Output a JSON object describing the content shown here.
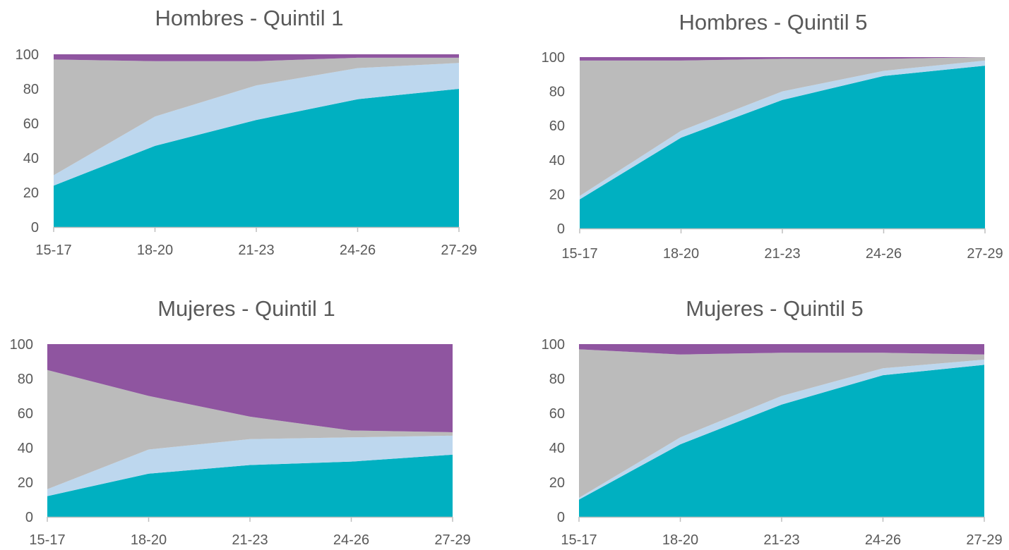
{
  "colors": {
    "inactive": "#8F55A0",
    "study_only": "#BBBBBB",
    "study_and_work": "#BDD7EE",
    "work_only": "#00B0C1",
    "axis": "#BFBFBF",
    "text": "#595959"
  },
  "chart_data": [
    {
      "type": "area",
      "stacked": true,
      "title": "Hombres - Quintil 1",
      "categories": [
        "15-17",
        "18-20",
        "21-23",
        "24-26",
        "27-29"
      ],
      "ylim": [
        0,
        100
      ],
      "yticks": [
        "0",
        "20",
        "40",
        "60",
        "80",
        "100"
      ],
      "grid": false,
      "series": [
        {
          "values": [
            24,
            47,
            62,
            74,
            80
          ],
          "color": "work_only"
        },
        {
          "values": [
            6,
            17,
            20,
            18,
            15
          ],
          "color": "study_and_work"
        },
        {
          "values": [
            67,
            32,
            14,
            6,
            3
          ],
          "color": "study_only"
        },
        {
          "values": [
            3,
            4,
            4,
            2,
            2
          ],
          "color": "inactive"
        }
      ]
    },
    {
      "type": "area",
      "stacked": true,
      "title": "Hombres - Quintil 5",
      "categories": [
        "15-17",
        "18-20",
        "21-23",
        "24-26",
        "27-29"
      ],
      "ylim": [
        0,
        100
      ],
      "yticks": [
        "0",
        "20",
        "40",
        "60",
        "80",
        "100"
      ],
      "grid": false,
      "series": [
        {
          "values": [
            17,
            53,
            75,
            89,
            95
          ],
          "color": "work_only"
        },
        {
          "values": [
            2,
            4,
            5,
            3,
            3
          ],
          "color": "study_and_work"
        },
        {
          "values": [
            79,
            41,
            19,
            7,
            2
          ],
          "color": "study_only"
        },
        {
          "values": [
            2,
            2,
            1,
            1,
            0
          ],
          "color": "inactive"
        }
      ]
    },
    {
      "type": "area",
      "stacked": true,
      "title": "Mujeres - Quintil 1",
      "categories": [
        "15-17",
        "18-20",
        "21-23",
        "24-26",
        "27-29"
      ],
      "ylim": [
        0,
        100
      ],
      "yticks": [
        "0",
        "20",
        "40",
        "60",
        "80",
        "100"
      ],
      "grid": false,
      "series": [
        {
          "values": [
            12,
            25,
            30,
            32,
            36
          ],
          "color": "work_only"
        },
        {
          "values": [
            4,
            14,
            15,
            14,
            11
          ],
          "color": "study_and_work"
        },
        {
          "values": [
            69,
            31,
            13,
            4,
            2
          ],
          "color": "study_only"
        },
        {
          "values": [
            15,
            30,
            42,
            50,
            51
          ],
          "color": "inactive"
        }
      ]
    },
    {
      "type": "area",
      "stacked": true,
      "title": "Mujeres - Quintil 5",
      "categories": [
        "15-17",
        "18-20",
        "21-23",
        "24-26",
        "27-29"
      ],
      "ylim": [
        0,
        100
      ],
      "yticks": [
        "0",
        "20",
        "40",
        "60",
        "80",
        "100"
      ],
      "grid": false,
      "series": [
        {
          "values": [
            10,
            42,
            65,
            82,
            88
          ],
          "color": "work_only"
        },
        {
          "values": [
            1,
            4,
            5,
            4,
            3
          ],
          "color": "study_and_work"
        },
        {
          "values": [
            86,
            48,
            25,
            9,
            3
          ],
          "color": "study_only"
        },
        {
          "values": [
            3,
            6,
            5,
            5,
            6
          ],
          "color": "inactive"
        }
      ]
    }
  ]
}
